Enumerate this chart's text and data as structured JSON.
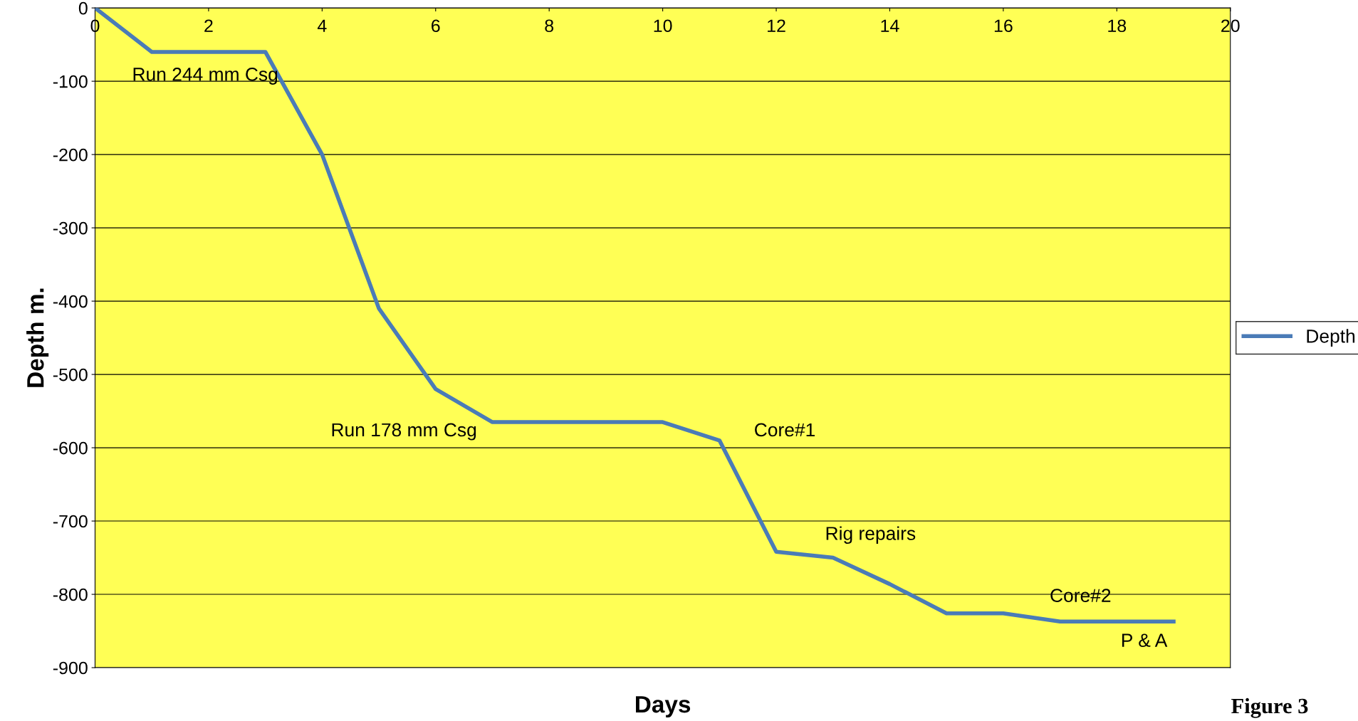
{
  "chart_data": {
    "type": "line",
    "xlabel": "Days",
    "ylabel": "Depth m.",
    "x": [
      0,
      1,
      2,
      3,
      4,
      5,
      6,
      7,
      8,
      9,
      10,
      11,
      12,
      13,
      14,
      15,
      16,
      17,
      18,
      19
    ],
    "series": [
      {
        "name": "Depth",
        "color": "#4a7bb7",
        "values": [
          0,
          -60,
          -60,
          -60,
          -200,
          -410,
          -520,
          -565,
          -565,
          -565,
          -565,
          -590,
          -742,
          -750,
          -786,
          -826,
          -826,
          -837,
          -837,
          -837
        ]
      }
    ],
    "xlim": [
      0,
      20
    ],
    "xticks": [
      0,
      2,
      4,
      6,
      8,
      10,
      12,
      14,
      16,
      18,
      20
    ],
    "ylim": [
      -900,
      0
    ],
    "yticks": [
      -900,
      -800,
      -700,
      -600,
      -500,
      -400,
      -300,
      -200,
      -100,
      0
    ],
    "grid": "y",
    "legend": "right",
    "marker": "none",
    "line_style": "solid",
    "annotations": [
      "Run 244 mm Csg",
      "Run 178 mm Csg",
      "Core#1",
      "Rig repairs",
      "Core#2",
      "P & A",
      "Figure 3"
    ]
  }
}
